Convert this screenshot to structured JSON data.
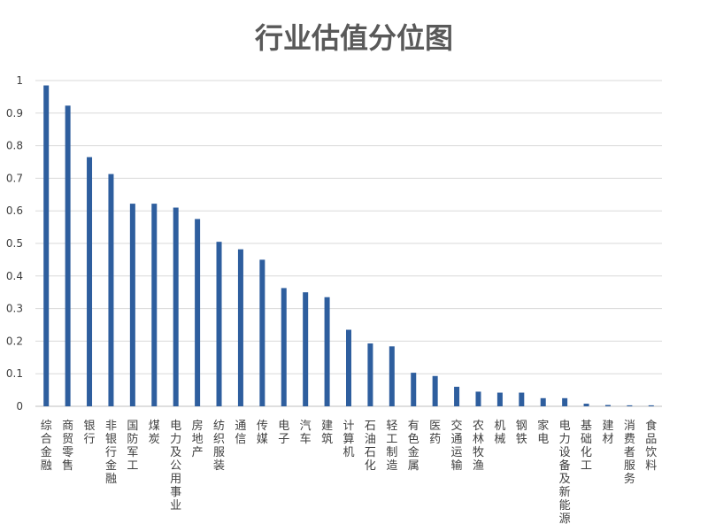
{
  "chart_data": {
    "type": "bar",
    "title": "行业估值分位图",
    "xlabel": "",
    "ylabel": "",
    "ylim": [
      0,
      1
    ],
    "yticks": [
      "0",
      "0.1",
      "0.2",
      "0.3",
      "0.4",
      "0.5",
      "0.6",
      "0.7",
      "0.8",
      "0.9",
      "1"
    ],
    "grid": true,
    "legend": "none",
    "bar_color": "#2E5E9E",
    "categories": [
      "综合金融",
      "商贸零售",
      "银行",
      "非银行金融",
      "国防军工",
      "煤炭",
      "电力及公用事业",
      "房地产",
      "纺织服装",
      "通信",
      "传媒",
      "电子",
      "汽车",
      "建筑",
      "计算机",
      "石油石化",
      "轻工制造",
      "有色金属",
      "医药",
      "交通运输",
      "农林牧渔",
      "机械",
      "钢铁",
      "家电",
      "电力设备及新能源",
      "基础化工",
      "建材",
      "消费者服务",
      "食品饮料"
    ],
    "values": [
      0.985,
      0.923,
      0.765,
      0.713,
      0.622,
      0.622,
      0.61,
      0.575,
      0.505,
      0.482,
      0.45,
      0.363,
      0.35,
      0.335,
      0.235,
      0.193,
      0.184,
      0.103,
      0.093,
      0.06,
      0.045,
      0.042,
      0.042,
      0.025,
      0.025,
      0.008,
      0.004,
      0.003,
      0.003
    ]
  }
}
